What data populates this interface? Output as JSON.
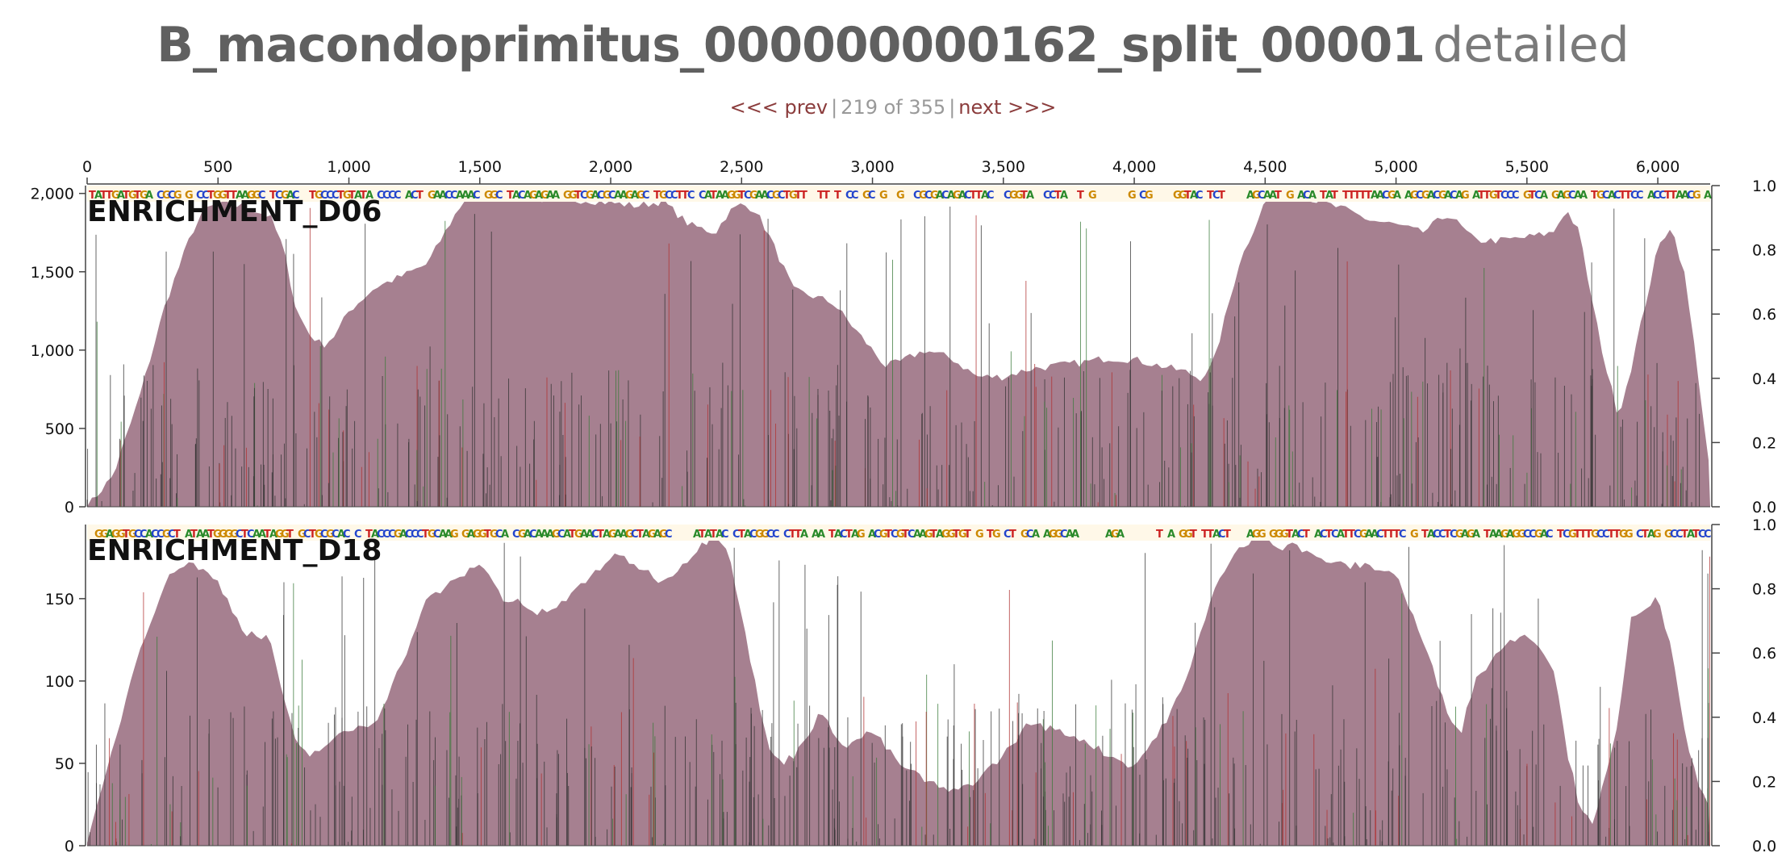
{
  "header": {
    "title": "B_macondoprimitus_000000000162_split_00001",
    "subtitle": "detailed"
  },
  "nav": {
    "prev_label": "<<< prev",
    "counter": "219 of 355",
    "next_label": "next >>>"
  },
  "colors": {
    "coverage_fill": "#a68090",
    "spike_dark": "#333333",
    "spike_red": "#b03030",
    "spike_green": "#3a7a3a",
    "axis": "#444444",
    "panel_title": "#111111"
  },
  "chart_data": [
    {
      "type": "area",
      "title": "ENRICHMENT_D06",
      "x_axis": {
        "range": [
          0,
          6200
        ],
        "ticks": [
          0,
          500,
          1000,
          1500,
          2000,
          2500,
          3000,
          3500,
          4000,
          4500,
          5000,
          5500,
          6000
        ],
        "tick_labels": [
          "0",
          "500",
          "1,000",
          "1,500",
          "2,000",
          "2,500",
          "3,000",
          "3,500",
          "4,000",
          "4,500",
          "5,000",
          "5,500",
          "6,000"
        ]
      },
      "y_axis_left": {
        "range": [
          0,
          2050
        ],
        "ticks": [
          0,
          500,
          1000,
          1500,
          2000
        ],
        "tick_labels": [
          "0",
          "500",
          "1,000",
          "1,500",
          "2,000"
        ]
      },
      "y_axis_right": {
        "range": [
          0,
          1.0
        ],
        "ticks": [
          0,
          0.2,
          0.4,
          0.6,
          0.8,
          1.0
        ],
        "tick_labels": [
          "0.0",
          "0.2",
          "0.4",
          "0.6",
          "0.8",
          "1.0"
        ]
      },
      "coverage": {
        "x": [
          0,
          100,
          200,
          300,
          400,
          450,
          500,
          600,
          700,
          750,
          800,
          850,
          900,
          950,
          1000,
          1100,
          1200,
          1300,
          1400,
          1450,
          1500,
          1600,
          1700,
          1800,
          1900,
          2000,
          2100,
          2200,
          2300,
          2400,
          2450,
          2500,
          2550,
          2600,
          2700,
          2800,
          2850,
          2900,
          3000,
          3050,
          3100,
          3200,
          3300,
          3400,
          3500,
          3600,
          3700,
          3800,
          3900,
          4000,
          4100,
          4200,
          4250,
          4300,
          4400,
          4500,
          4550,
          4600,
          4700,
          4800,
          4900,
          5000,
          5100,
          5200,
          5300,
          5400,
          5500,
          5600,
          5650,
          5700,
          5750,
          5800,
          5850,
          5900,
          6000,
          6050,
          6100,
          6150,
          6200
        ],
        "y": [
          0,
          200,
          700,
          1300,
          1750,
          1900,
          1930,
          1920,
          1850,
          1650,
          1250,
          1100,
          1030,
          1100,
          1250,
          1400,
          1470,
          1550,
          1850,
          1980,
          1990,
          2000,
          1970,
          1950,
          1960,
          1940,
          1920,
          1950,
          1800,
          1750,
          1880,
          1930,
          1900,
          1750,
          1380,
          1330,
          1300,
          1200,
          1000,
          900,
          920,
          1000,
          950,
          830,
          830,
          880,
          900,
          920,
          950,
          940,
          900,
          860,
          820,
          900,
          1550,
          1950,
          2000,
          2020,
          1950,
          1900,
          1830,
          1800,
          1750,
          1870,
          1700,
          1700,
          1720,
          1750,
          1900,
          1750,
          1300,
          900,
          580,
          900,
          1650,
          1800,
          1500,
          900,
          200
        ]
      },
      "letter_track": [
        "A",
        "C",
        "G",
        "T"
      ]
    },
    {
      "type": "area",
      "title": "ENRICHMENT_D18",
      "x_axis": {
        "range": [
          0,
          6200
        ]
      },
      "y_axis_left": {
        "range": [
          0,
          195
        ],
        "ticks": [
          0,
          50,
          100,
          150
        ],
        "tick_labels": [
          "0",
          "50",
          "100",
          "150"
        ]
      },
      "y_axis_right": {
        "range": [
          0,
          1.0
        ],
        "ticks": [
          0,
          0.2,
          0.4,
          0.6,
          0.8,
          1.0
        ],
        "tick_labels": [
          "0.0",
          "0.2",
          "0.4",
          "0.6",
          "0.8",
          "1.0"
        ]
      },
      "coverage": {
        "x": [
          0,
          100,
          200,
          300,
          350,
          400,
          500,
          600,
          700,
          750,
          800,
          850,
          900,
          1000,
          1100,
          1200,
          1300,
          1400,
          1500,
          1600,
          1650,
          1700,
          1800,
          1900,
          2000,
          2050,
          2100,
          2200,
          2300,
          2400,
          2450,
          2500,
          2550,
          2600,
          2650,
          2700,
          2800,
          2900,
          3000,
          3100,
          3200,
          3300,
          3400,
          3500,
          3600,
          3700,
          3800,
          3900,
          4000,
          4100,
          4200,
          4300,
          4400,
          4500,
          4550,
          4600,
          4650,
          4700,
          4800,
          4900,
          5000,
          5100,
          5200,
          5250,
          5300,
          5400,
          5500,
          5600,
          5650,
          5700,
          5750,
          5800,
          5850,
          5900,
          6000,
          6050,
          6100,
          6150,
          6200
        ],
        "y": [
          0,
          60,
          120,
          160,
          170,
          172,
          160,
          130,
          125,
          90,
          60,
          55,
          60,
          70,
          75,
          110,
          150,
          160,
          172,
          148,
          150,
          140,
          145,
          160,
          175,
          175,
          170,
          160,
          175,
          190,
          180,
          140,
          100,
          60,
          50,
          55,
          80,
          60,
          70,
          50,
          40,
          32,
          40,
          55,
          75,
          70,
          65,
          55,
          48,
          70,
          100,
          155,
          180,
          190,
          180,
          185,
          178,
          175,
          170,
          170,
          165,
          125,
          80,
          70,
          100,
          120,
          130,
          110,
          60,
          25,
          15,
          40,
          75,
          140,
          150,
          120,
          70,
          40,
          20
        ]
      },
      "letter_track": [
        "A",
        "C",
        "G",
        "T"
      ]
    }
  ]
}
